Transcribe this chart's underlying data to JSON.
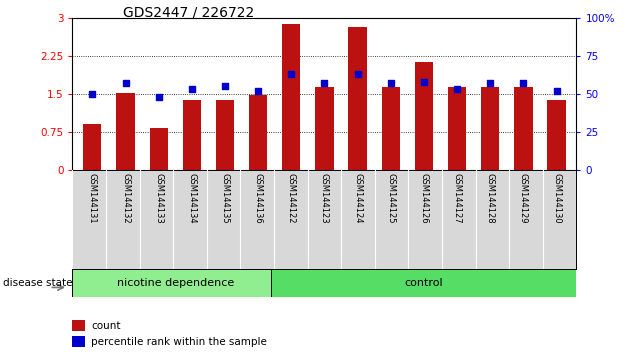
{
  "title": "GDS2447 / 226722",
  "samples": [
    "GSM144131",
    "GSM144132",
    "GSM144133",
    "GSM144134",
    "GSM144135",
    "GSM144136",
    "GSM144122",
    "GSM144123",
    "GSM144124",
    "GSM144125",
    "GSM144126",
    "GSM144127",
    "GSM144128",
    "GSM144129",
    "GSM144130"
  ],
  "count_values": [
    0.9,
    1.52,
    0.82,
    1.38,
    1.38,
    1.48,
    2.88,
    1.63,
    2.82,
    1.63,
    2.13,
    1.63,
    1.63,
    1.63,
    1.38
  ],
  "percentile_values": [
    50,
    57,
    48,
    53,
    55,
    52,
    63,
    57,
    63,
    57,
    58,
    53,
    57,
    57,
    52
  ],
  "groups": [
    {
      "label": "nicotine dependence",
      "start": 0,
      "end": 6,
      "color": "#90EE90"
    },
    {
      "label": "control",
      "start": 6,
      "end": 15,
      "color": "#55DD66"
    }
  ],
  "group_label": "disease state",
  "ylim_left": [
    0,
    3
  ],
  "ylim_right": [
    0,
    100
  ],
  "yticks_left": [
    0,
    0.75,
    1.5,
    2.25,
    3
  ],
  "yticks_right": [
    0,
    25,
    50,
    75,
    100
  ],
  "bar_color": "#BB1111",
  "dot_color": "#0000CC",
  "legend_count_label": "count",
  "legend_percentile_label": "percentile rank within the sample"
}
